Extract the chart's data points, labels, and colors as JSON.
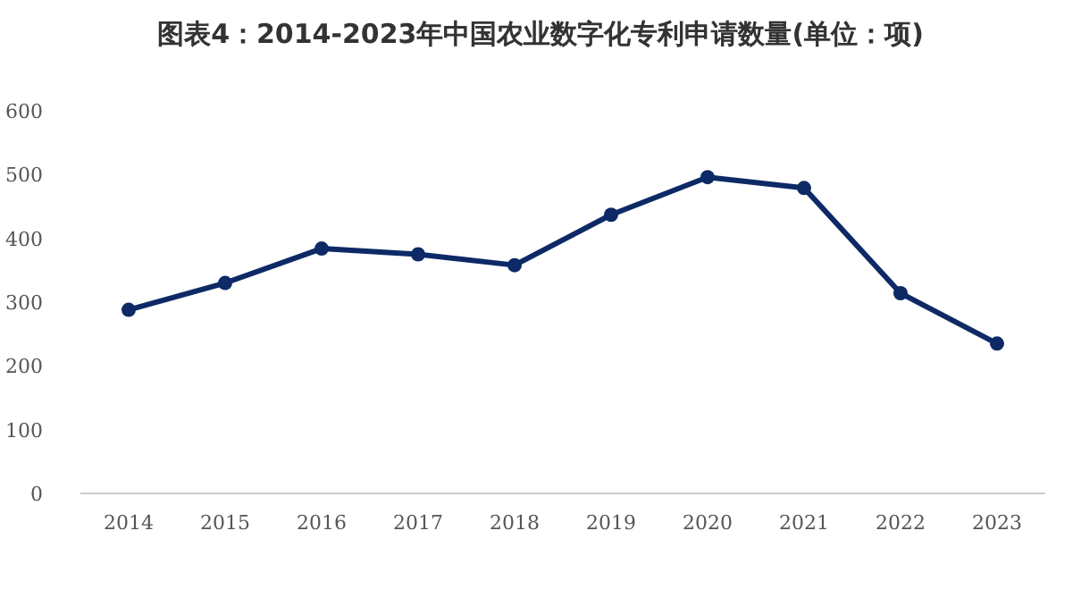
{
  "chart_data": {
    "type": "line",
    "title": "图表4：2014-2023年中国农业数字化专利申请数量(单位：项)",
    "categories": [
      "2014",
      "2015",
      "2016",
      "2017",
      "2018",
      "2019",
      "2020",
      "2021",
      "2022",
      "2023"
    ],
    "series": [
      {
        "color": "#0d2a66",
        "values": [
          288,
          330,
          384,
          375,
          358,
          437,
          496,
          479,
          314,
          235
        ]
      }
    ],
    "ylim": [
      0,
      600
    ],
    "yticks": [
      0,
      100,
      200,
      300,
      400,
      500,
      600
    ],
    "grid": false,
    "marker": "circle",
    "line_style": "solid"
  }
}
